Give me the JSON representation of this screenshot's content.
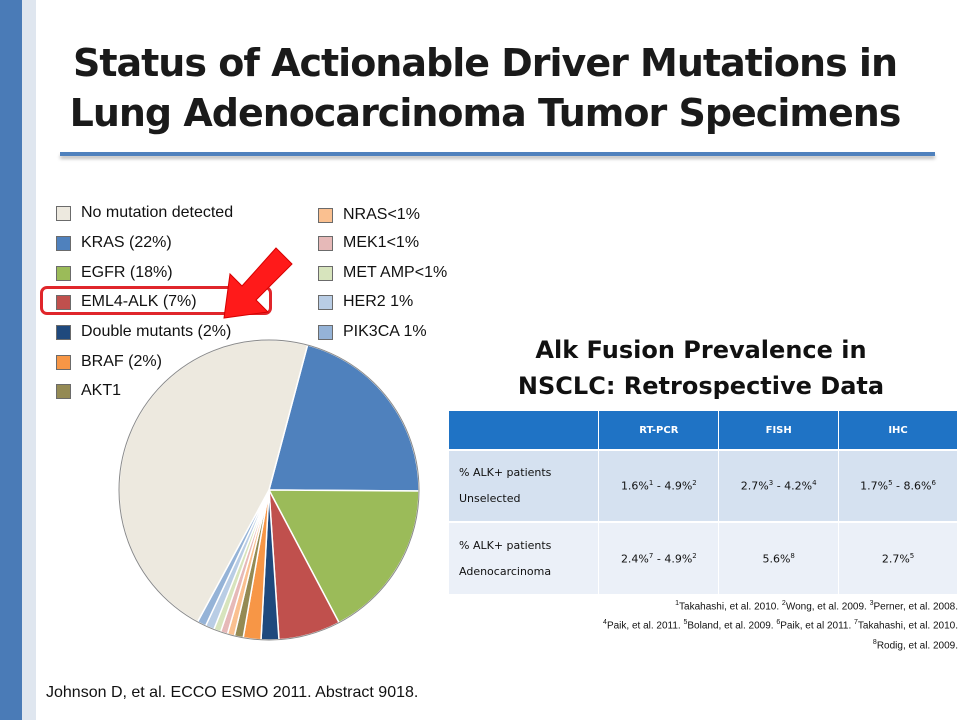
{
  "slide": {
    "title_line1": "Status of Actionable Driver Mutations in",
    "title_line2": "Lung Adenocarcinoma Tumor Specimens",
    "citation": "Johnson D, et al. ECCO ESMO  2011. Abstract 9018."
  },
  "chart_data": {
    "type": "pie",
    "series": [
      {
        "name": "No mutation detected",
        "value": 48.5,
        "color": "#ede9df"
      },
      {
        "name": "KRAS (22%)",
        "value": 22,
        "color": "#4f81bd"
      },
      {
        "name": "EGFR (18%)",
        "value": 18,
        "color": "#9bbb59"
      },
      {
        "name": "EML4-ALK (7%)",
        "value": 7,
        "color": "#c0504d"
      },
      {
        "name": "Double mutants (2%)",
        "value": 2,
        "color": "#1f497d"
      },
      {
        "name": "BRAF (2%)",
        "value": 2,
        "color": "#f79646"
      },
      {
        "name": "AKT1",
        "value": 1,
        "color": "#948a54"
      },
      {
        "name": "NRAS<1%",
        "value": 0.8,
        "color": "#fac090"
      },
      {
        "name": "MEK1<1%",
        "value": 0.8,
        "color": "#e6b9b8"
      },
      {
        "name": "MET AMP<1%",
        "value": 0.8,
        "color": "#d7e4bd"
      },
      {
        "name": "HER2 1%",
        "value": 1,
        "color": "#b9cde5"
      },
      {
        "name": "PIK3CA 1%",
        "value": 1,
        "color": "#95b3d7"
      }
    ],
    "highlighted": "EML4-ALK (7%)",
    "legend_position": "top"
  },
  "annotation": {
    "highlight_color": "#e0262b"
  },
  "alk_table": {
    "title_line1": "Alk Fusion Prevalence in",
    "title_line2": "NSCLC: Retrospective Data",
    "headers": [
      "",
      "RT-PCR",
      "FISH",
      "IHC"
    ],
    "rows": [
      {
        "label_line1": "% ALK+ patients",
        "label_line2": "Unselected",
        "rtpcr": {
          "a": "1.6%",
          "a_sup": "1",
          "sep": " - 4.9%",
          "b_sup": "2"
        },
        "fish": {
          "a": "2.7%",
          "a_sup": "3",
          "sep": " - 4.2%",
          "b_sup": "4"
        },
        "ihc": {
          "a": "1.7%",
          "a_sup": "5",
          "sep": " - 8.6%",
          "b_sup": "6"
        }
      },
      {
        "label_line1": "% ALK+ patients",
        "label_line2": "Adenocarcinoma",
        "rtpcr": {
          "a": "2.4%",
          "a_sup": "7",
          "sep": " - 4.9%",
          "b_sup": "2"
        },
        "fish": {
          "a": "5.6%",
          "a_sup": "8"
        },
        "ihc": {
          "a": "2.7%",
          "a_sup": "5"
        }
      }
    ],
    "header_color": "#1f73c5"
  },
  "references": {
    "r1_sup": "1",
    "r1": "Takahashi,  et al. 2010. ",
    "r2_sup": "2",
    "r2": "Wong, et al. 2009. ",
    "r3_sup": "3",
    "r3": "Perner,  et al. 2008.",
    "r4_sup": "4",
    "r4": "Paik, et al. 2011. ",
    "r5_sup": "5",
    "r5": "Boland, et al. 2009. ",
    "r6_sup": "6",
    "r6": "Paik, et al 2011. ",
    "r7_sup": "7",
    "r7": "Takahashi,  et al. 2010.",
    "r8_sup": "8",
    "r8": "Rodig, et al. 2009."
  }
}
